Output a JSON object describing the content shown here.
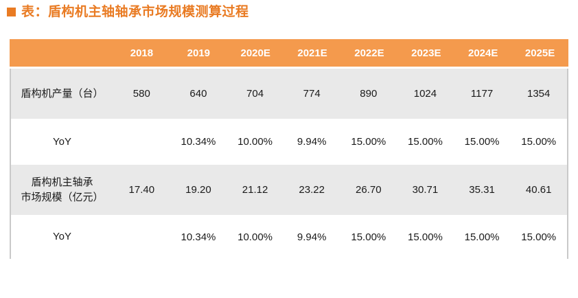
{
  "title": {
    "bullet_icon": "orange-square",
    "text": "表：盾构机主轴轴承市场规模测算过程"
  },
  "chart_data": {
    "type": "table",
    "title": "表：盾构机主轴轴承市场规模测算过程",
    "columns": [
      "2018",
      "2019",
      "2020E",
      "2021E",
      "2022E",
      "2023E",
      "2024E",
      "2025E"
    ],
    "rows": [
      {
        "label": "盾构机产量（台）",
        "label_lines": [
          "盾构机产量（台）"
        ],
        "values": [
          "580",
          "640",
          "704",
          "774",
          "890",
          "1024",
          "1177",
          "1354"
        ],
        "shaded": true
      },
      {
        "label": "YoY",
        "label_lines": [
          "YoY"
        ],
        "values": [
          "",
          "10.34%",
          "10.00%",
          "9.94%",
          "15.00%",
          "15.00%",
          "15.00%",
          "15.00%"
        ],
        "shaded": false
      },
      {
        "label": "盾构机主轴承市场规模（亿元）",
        "label_lines": [
          "盾构机主轴承",
          "市场规模（亿元）"
        ],
        "values": [
          "17.40",
          "19.20",
          "21.12",
          "23.22",
          "26.70",
          "30.71",
          "35.31",
          "40.61"
        ],
        "shaded": true
      },
      {
        "label": "YoY",
        "label_lines": [
          "YoY"
        ],
        "values": [
          "",
          "10.34%",
          "10.00%",
          "9.94%",
          "15.00%",
          "15.00%",
          "15.00%",
          "15.00%"
        ],
        "shaded": false
      }
    ],
    "layout": {
      "header_position": "top",
      "shading": "alternating-rows"
    }
  },
  "colors": {
    "title_orange": "#e97b23",
    "header_bg": "#f49a4d",
    "header_text": "#ffffff",
    "shaded_row_bg": "#e9e9e9",
    "row_bg": "#ffffff",
    "body_text": "#1a1a1a",
    "table_side_border": "#c9c9c9"
  }
}
